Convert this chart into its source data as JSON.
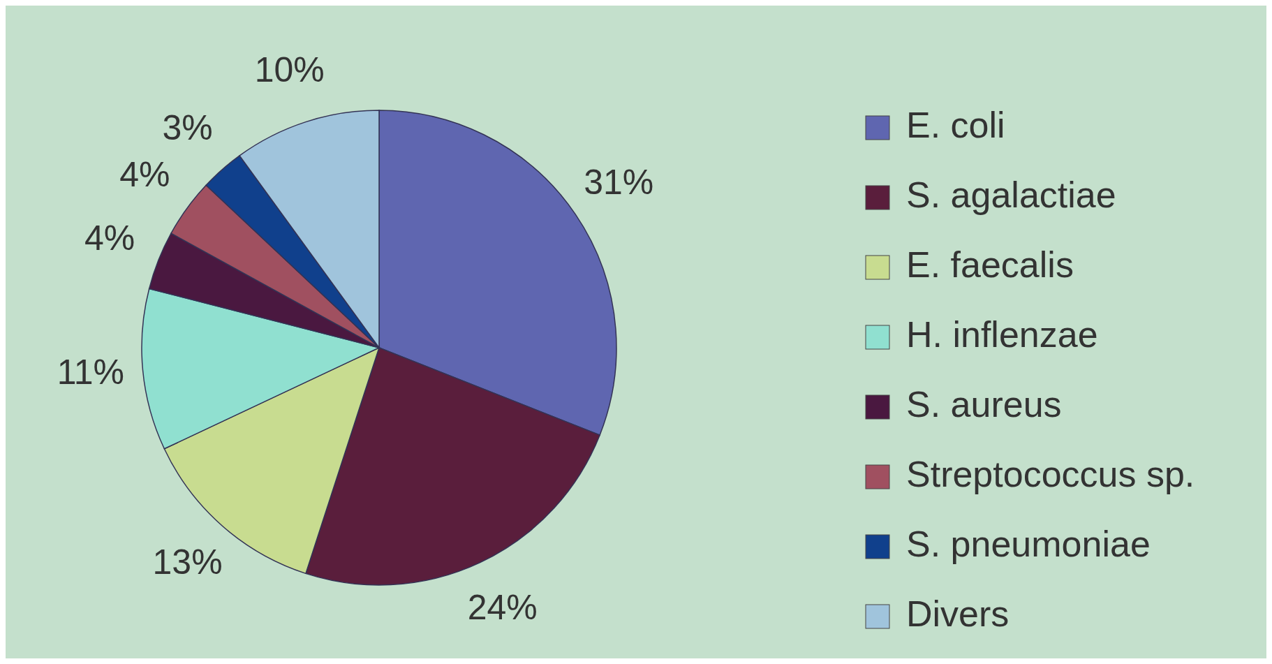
{
  "chart_data": {
    "type": "pie",
    "categories": [
      "E. coli",
      "S. agalactiae",
      "E. faecalis",
      "H. inflenzae",
      "S. aureus",
      "Streptococcus sp.",
      "S. pneumoniae",
      "Divers"
    ],
    "values": [
      31,
      24,
      13,
      11,
      4,
      4,
      3,
      10
    ],
    "value_labels": [
      "31%",
      "24%",
      "13%",
      "11%",
      "4%",
      "4%",
      "3%",
      "10%"
    ],
    "colors": [
      "#5f66b0",
      "#5a1e3c",
      "#c8dc90",
      "#90e0d0",
      "#4a1840",
      "#a05060",
      "#10408c",
      "#a0c4dc"
    ],
    "legend": "right"
  }
}
